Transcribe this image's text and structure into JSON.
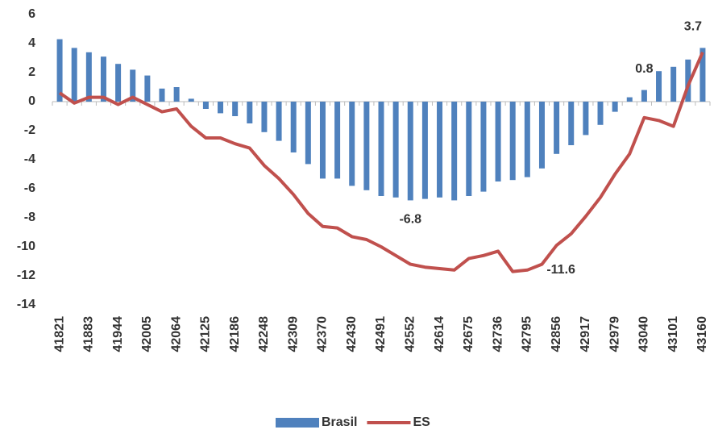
{
  "chart_data": {
    "type": "bar-line",
    "categories": [
      "41821",
      null,
      "41883",
      null,
      "41944",
      null,
      "42005",
      null,
      "42064",
      null,
      "42125",
      null,
      "42186",
      null,
      "42248",
      null,
      "42309",
      null,
      "42370",
      null,
      "42430",
      null,
      "42491",
      null,
      "42552",
      null,
      "42614",
      null,
      "42675",
      null,
      "42736",
      null,
      "42795",
      null,
      "42856",
      null,
      "42917",
      null,
      "42979",
      null,
      "43040",
      null,
      "43101",
      null,
      "43160"
    ],
    "series": [
      {
        "name": "Brasil",
        "type": "bar",
        "color": "#4f81bd",
        "values": [
          4.3,
          3.7,
          3.4,
          3.1,
          2.6,
          2.2,
          1.8,
          0.9,
          1.0,
          0.2,
          -0.5,
          -0.8,
          -1.0,
          -1.5,
          -2.1,
          -2.7,
          -3.5,
          -4.3,
          -5.3,
          -5.3,
          -5.8,
          -6.1,
          -6.5,
          -6.6,
          -6.8,
          -6.7,
          -6.6,
          -6.8,
          -6.5,
          -6.2,
          -5.5,
          -5.4,
          -5.2,
          -4.6,
          -3.6,
          -3.0,
          -2.3,
          -1.6,
          -0.7,
          0.3,
          0.8,
          2.1,
          2.4,
          2.9,
          3.7
        ],
        "value_labels": [
          null,
          null,
          null,
          null,
          null,
          null,
          null,
          null,
          null,
          null,
          null,
          null,
          null,
          null,
          null,
          null,
          null,
          null,
          null,
          null,
          null,
          null,
          null,
          null,
          "-6.8",
          null,
          null,
          null,
          null,
          null,
          null,
          null,
          null,
          null,
          null,
          null,
          null,
          null,
          null,
          null,
          "0.8",
          null,
          null,
          null,
          "3.7"
        ]
      },
      {
        "name": "ES",
        "type": "line",
        "color": "#c0504d",
        "values": [
          0.6,
          -0.1,
          0.3,
          0.3,
          -0.2,
          0.3,
          -0.2,
          -0.7,
          -0.5,
          -1.7,
          -2.5,
          -2.5,
          -2.9,
          -3.2,
          -4.4,
          -5.3,
          -6.4,
          -7.7,
          -8.6,
          -8.7,
          -9.3,
          -9.5,
          -10.0,
          -10.6,
          -11.2,
          -11.4,
          -11.5,
          -11.6,
          -10.8,
          -10.6,
          -10.3,
          -11.7,
          -11.6,
          -11.2,
          -9.9,
          -9.1,
          -7.9,
          -6.6,
          -5.0,
          -3.6,
          -1.1,
          -1.3,
          -1.7,
          1.1,
          3.4
        ],
        "value_labels": [
          null,
          null,
          null,
          null,
          null,
          null,
          null,
          null,
          null,
          null,
          null,
          null,
          null,
          null,
          null,
          null,
          null,
          null,
          null,
          null,
          null,
          null,
          null,
          null,
          null,
          null,
          null,
          null,
          null,
          null,
          null,
          null,
          "-11.6",
          null,
          null,
          null,
          null,
          null,
          null,
          null,
          null,
          null,
          null,
          null,
          null
        ]
      }
    ],
    "ylim": [
      -14,
      6
    ],
    "yticks": [
      -14,
      -12,
      -10,
      -8,
      -6,
      -4,
      -2,
      0,
      2,
      4,
      6
    ],
    "grid": false,
    "legend": "bottom"
  }
}
